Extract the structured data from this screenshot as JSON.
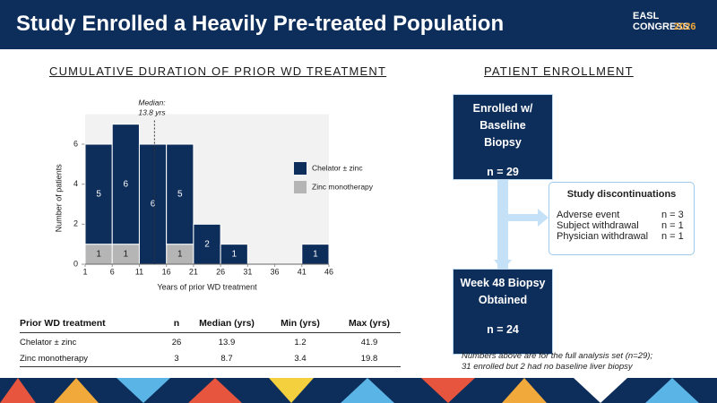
{
  "header": {
    "title": "Study Enrolled a Heavily Pre-treated Population",
    "logo": "EASL CONGRESS",
    "logo_year": "2026"
  },
  "chart_data": {
    "type": "histogram",
    "title": "CUMULATIVE DURATION OF PRIOR WD TREATMENT",
    "x_label": "Years of prior WD treatment",
    "y_label": "Number of patients",
    "bins": [
      1,
      6,
      11,
      16,
      21,
      26,
      31,
      36,
      41,
      46
    ],
    "stacked": true,
    "series": [
      {
        "name": "Zinc monotherapy",
        "color": "#b5b5b5",
        "label_color": "#1a1a1a",
        "values": [
          1,
          1,
          0,
          1,
          0,
          0,
          0,
          0,
          0
        ]
      },
      {
        "name": "Chelator ± zinc",
        "color": "#0d2d5a",
        "label_color": "#ffffff",
        "values": [
          5,
          6,
          6,
          5,
          2,
          1,
          0,
          0,
          1
        ]
      }
    ],
    "xlim": [
      1,
      46
    ],
    "xticks": [
      1,
      6,
      11,
      16,
      21,
      26,
      31,
      36,
      41,
      46
    ],
    "ylim": [
      0,
      7.5
    ],
    "yticks": [
      0,
      2,
      4,
      6
    ],
    "annotation": {
      "x": 13.8,
      "lines": [
        "Median:",
        "13.8 yrs"
      ]
    },
    "legend": "right"
  },
  "table": {
    "header": [
      "Prior WD treatment",
      "n",
      "Median (yrs)",
      "Min (yrs)",
      "Max (yrs)"
    ],
    "rows": [
      [
        "Chelator ± zinc",
        "26",
        "13.9",
        "1.2",
        "41.9"
      ],
      [
        "Zinc monotherapy",
        "3",
        "8.7",
        "3.4",
        "19.8"
      ]
    ]
  },
  "flow": {
    "title": "PATIENT ENROLLMENT",
    "boxes": [
      {
        "lines": [
          "Enrolled w/ Baseline",
          "Biopsy"
        ],
        "n": "n = 29"
      },
      {
        "lines": [
          "Week 48 Biopsy",
          "Obtained"
        ],
        "n": "n = 24"
      }
    ],
    "discontinuations": {
      "title": "Study discontinuations",
      "items": [
        [
          "Adverse event",
          "n = 3"
        ],
        [
          "Subject withdrawal",
          "n = 1"
        ],
        [
          "Physician withdrawal",
          "n = 1"
        ]
      ]
    },
    "note": [
      "Numbers above are for the full analysis set (n=29);",
      "31 enrolled but 2 had no baseline liver biopsy"
    ]
  }
}
